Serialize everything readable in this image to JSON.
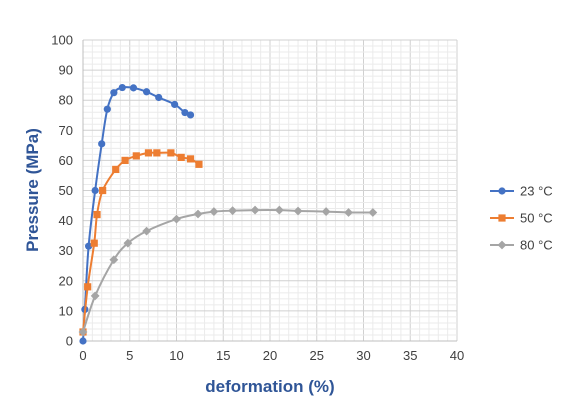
{
  "chart_data": {
    "type": "line",
    "title": "",
    "xlabel": "deformation (%)",
    "ylabel": "Pressure (MPa)",
    "xlim": [
      0,
      40
    ],
    "ylim": [
      0,
      100
    ],
    "x_ticks": [
      0,
      5,
      10,
      15,
      20,
      25,
      30,
      35,
      40
    ],
    "y_ticks": [
      0,
      10,
      20,
      30,
      40,
      50,
      60,
      70,
      80,
      90,
      100
    ],
    "grid": true,
    "legend_position": "right",
    "series": [
      {
        "name": "23 °C",
        "color": "#4472c4",
        "marker": "circle",
        "points": [
          [
            0,
            0
          ],
          [
            0.2,
            10.5
          ],
          [
            0.6,
            31.5
          ],
          [
            1.3,
            50
          ],
          [
            2,
            65.5
          ],
          [
            2.6,
            77
          ],
          [
            3.3,
            82.5
          ],
          [
            4.2,
            84.2
          ],
          [
            5.4,
            84.1
          ],
          [
            6.8,
            82.8
          ],
          [
            8.1,
            80.9
          ],
          [
            9.8,
            78.6
          ],
          [
            10.9,
            75.9
          ],
          [
            11.5,
            75.1
          ]
        ]
      },
      {
        "name": "50 °C",
        "color": "#ed7d31",
        "marker": "square",
        "points": [
          [
            0,
            3
          ],
          [
            0.5,
            18
          ],
          [
            1.2,
            32.5
          ],
          [
            1.5,
            42
          ],
          [
            2.1,
            50
          ],
          [
            3.5,
            57
          ],
          [
            4.5,
            60
          ],
          [
            5.7,
            61.5
          ],
          [
            7,
            62.5
          ],
          [
            7.9,
            62.5
          ],
          [
            9.4,
            62.5
          ],
          [
            10.5,
            61
          ],
          [
            11.5,
            60.5
          ],
          [
            12.4,
            58.7
          ]
        ]
      },
      {
        "name": "80 °C",
        "color": "#a5a5a5",
        "marker": "diamond",
        "points": [
          [
            0,
            3
          ],
          [
            1.3,
            15
          ],
          [
            3.3,
            27
          ],
          [
            4.8,
            32.5
          ],
          [
            6.8,
            36.5
          ],
          [
            10,
            40.5
          ],
          [
            12.3,
            42.2
          ],
          [
            14,
            43
          ],
          [
            16,
            43.3
          ],
          [
            18.4,
            43.5
          ],
          [
            21,
            43.5
          ],
          [
            23,
            43.2
          ],
          [
            26,
            43
          ],
          [
            28.4,
            42.7
          ],
          [
            31,
            42.7
          ]
        ]
      }
    ]
  }
}
